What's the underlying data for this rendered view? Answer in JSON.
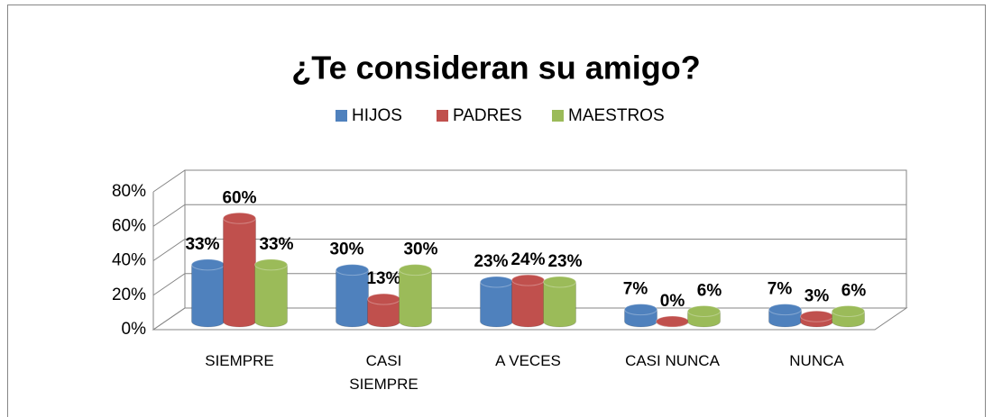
{
  "chart_data": {
    "type": "bar3d",
    "title": "¿Te consideran su amigo?",
    "categories": [
      "SIEMPRE",
      "CASI SIEMPRE",
      "A VECES",
      "CASI NUNCA",
      "NUNCA"
    ],
    "series": [
      {
        "name": "HIJOS",
        "color": "#4f81bd",
        "values": [
          33,
          30,
          23,
          7,
          7
        ],
        "value_labels": [
          "33%",
          "30%",
          "23%",
          "7%",
          "7%"
        ]
      },
      {
        "name": "PADRES",
        "color": "#c0504d",
        "values": [
          60,
          13,
          24,
          0,
          3
        ],
        "value_labels": [
          "60%",
          "13%",
          "24%",
          "0%",
          "3%"
        ]
      },
      {
        "name": "MAESTROS",
        "color": "#9bbb59",
        "values": [
          33,
          30,
          23,
          6,
          6
        ],
        "value_labels": [
          "33%",
          "30%",
          "23%",
          "6%",
          "6%"
        ]
      }
    ],
    "ylim": [
      0,
      80
    ],
    "yticks": [
      {
        "value": 0,
        "label": "0%"
      },
      {
        "value": 20,
        "label": "20%"
      },
      {
        "value": 40,
        "label": "40%"
      },
      {
        "value": 60,
        "label": "60%"
      },
      {
        "value": 80,
        "label": "80%"
      }
    ],
    "grid": true,
    "legend": "top"
  }
}
